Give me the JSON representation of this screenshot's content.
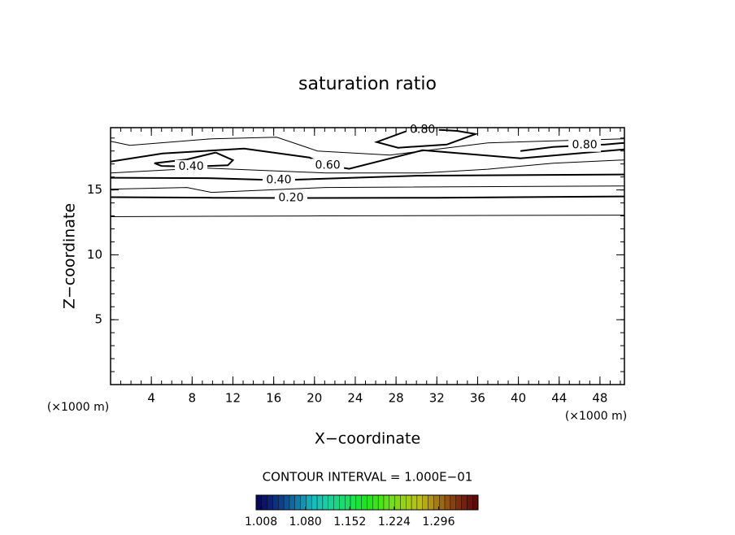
{
  "chart_data": {
    "type": "contour",
    "title": "saturation ratio",
    "x_label": "X−coordinate",
    "y_label": "Z−coordinate",
    "x_unit": "(×1000 m)",
    "y_unit": "(×1000 m)",
    "xlim": [
      0,
      50.4
    ],
    "ylim": [
      0,
      19.8
    ],
    "xticks": [
      4,
      8,
      12,
      16,
      20,
      24,
      28,
      32,
      36,
      40,
      44,
      48
    ],
    "yticks": [
      5,
      10,
      15
    ],
    "color": "#000000",
    "contours": [
      {
        "x": [
          0,
          21,
          50.4
        ],
        "y": [
          12.94,
          13.0,
          13.06
        ]
      },
      {
        "label": "0.20",
        "x": [
          0,
          10,
          17.7,
          32,
          50.4
        ],
        "y": [
          14.44,
          14.4,
          14.38,
          14.4,
          14.5
        ]
      },
      {
        "x": [
          0,
          7.5,
          9.9,
          21.1,
          50.4
        ],
        "y": [
          15.06,
          15.19,
          14.81,
          15.19,
          15.31
        ]
      },
      {
        "label": "0.40",
        "x": [
          0,
          10,
          16.5,
          30,
          50.4
        ],
        "y": [
          15.94,
          15.9,
          15.75,
          16.1,
          16.19
        ]
      },
      {
        "x": [
          0,
          9.1,
          21.1,
          30.6,
          37,
          43.4,
          50.4
        ],
        "y": [
          16.31,
          16.69,
          16.31,
          16.31,
          16.6,
          17.06,
          17.31
        ]
      },
      {
        "label": "0.60",
        "x": [
          0,
          5.1,
          13.1,
          19.5,
          21.3,
          23.4,
          30.6,
          40.2,
          50.4
        ],
        "y": [
          17.19,
          17.81,
          18.19,
          17.5,
          16.9,
          16.63,
          18.06,
          17.44,
          18.13
        ]
      },
      {
        "label": "0.40",
        "x": [
          10.3,
          7.5,
          4.3,
          5.0,
          7.9,
          11.5,
          12.0,
          10.3
        ],
        "y": [
          17.88,
          17.35,
          17.06,
          16.85,
          16.8,
          16.9,
          17.3,
          17.88
        ]
      },
      {
        "label": "0.80",
        "x": [
          33.0,
          35.8,
          34,
          32.5,
          30.6,
          28.9,
          26.1,
          28.2,
          33.0
        ],
        "y": [
          18.5,
          19.31,
          19.55,
          19.62,
          19.65,
          19.5,
          18.69,
          18.25,
          18.5
        ]
      },
      {
        "label": "0.80",
        "x": [
          40.2,
          43.4,
          46.5,
          48.5,
          50.4
        ],
        "y": [
          18.0,
          18.31,
          18.44,
          18.5,
          18.63
        ]
      },
      {
        "x": [
          0,
          1.9,
          9.9,
          16.3,
          20.3,
          27.4,
          37,
          50.4
        ],
        "y": [
          18.75,
          18.44,
          18.94,
          19.06,
          18.0,
          17.69,
          18.63,
          18.94
        ]
      }
    ],
    "contour_interval": "CONTOUR INTERVAL = 1.000E−01",
    "clim": [
      1.0,
      1.36
    ],
    "cticks": [
      {
        "value": 1.008,
        "label": "1.008"
      },
      {
        "value": 1.08,
        "label": "1.080"
      },
      {
        "value": 1.152,
        "label": "1.152"
      },
      {
        "value": 1.224,
        "label": "1.224"
      },
      {
        "value": 1.296,
        "label": "1.296"
      }
    ]
  }
}
